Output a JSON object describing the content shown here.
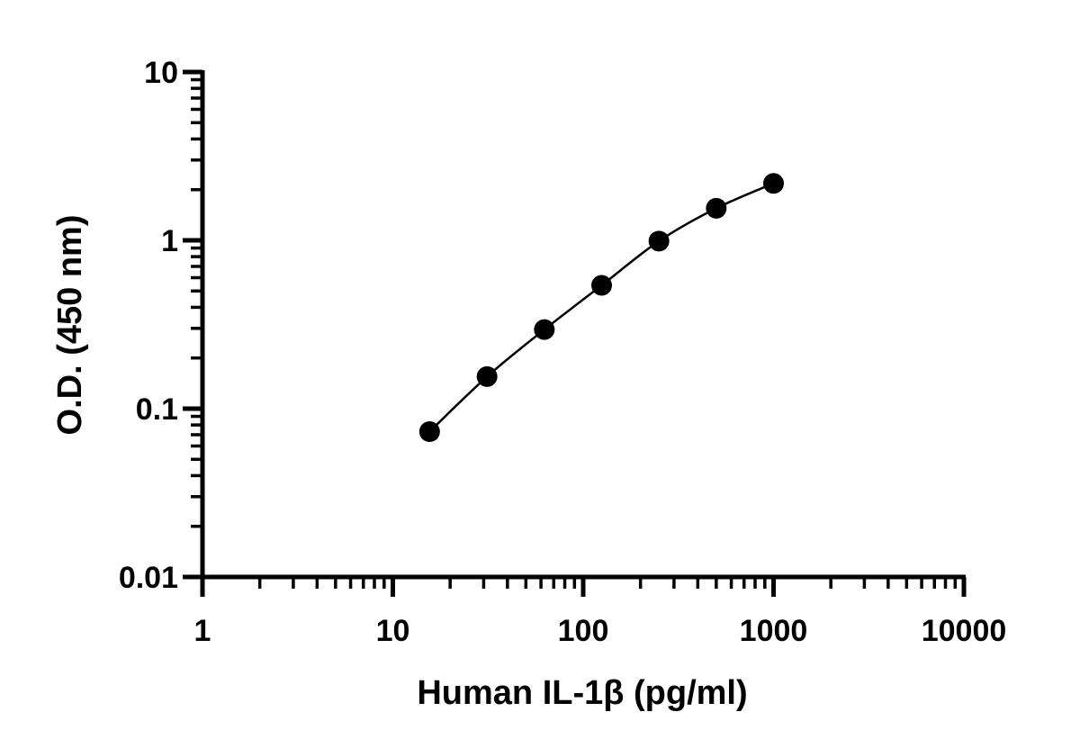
{
  "chart_data": {
    "type": "scatter",
    "title": "",
    "xlabel": "Human IL-1β (pg/ml)",
    "ylabel": "O.D. (450 nm)",
    "x_scale": "log",
    "y_scale": "log",
    "xlim": [
      1,
      10000
    ],
    "ylim": [
      0.01,
      10
    ],
    "x_ticks": [
      "1",
      "10",
      "100",
      "1000",
      "10000"
    ],
    "y_ticks": [
      "0.01",
      "0.1",
      "1",
      "10"
    ],
    "grid": false,
    "legend": "none",
    "series": [
      {
        "x": [
          15.6,
          31.25,
          62.5,
          125,
          250,
          500,
          1000
        ],
        "y": [
          0.073,
          0.155,
          0.295,
          0.54,
          0.99,
          1.55,
          2.18
        ],
        "marker": "circle",
        "color": "#000000",
        "fit_curve": true
      }
    ]
  }
}
